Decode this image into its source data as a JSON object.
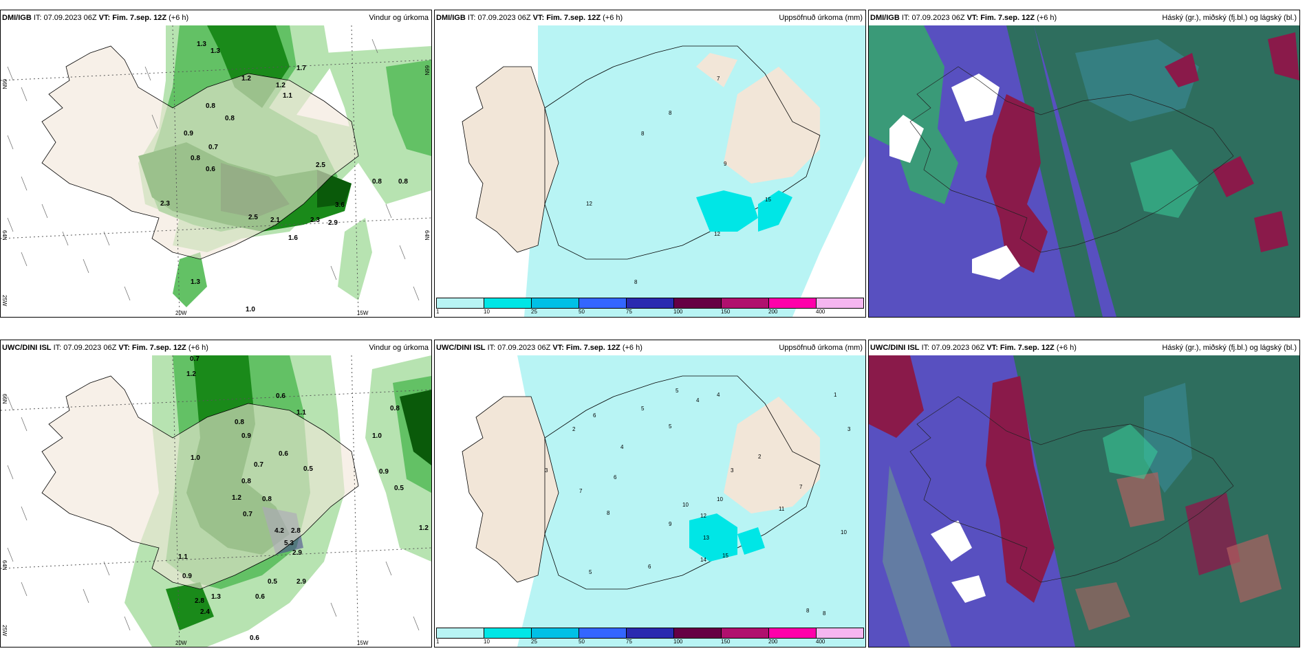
{
  "panels": [
    {
      "source": "DMI/IGB",
      "it": "IT: 07.09.2023 06Z",
      "vt": "VT: Fim. 7.sep. 12Z",
      "lead": "(+6 h)",
      "title": "Vindur og úrkoma"
    },
    {
      "source": "DMI/IGB",
      "it": "IT: 07.09.2023 06Z",
      "vt": "VT: Fim. 7.sep. 12Z",
      "lead": "(+6 h)",
      "title": "Uppsöfnuð úrkoma (mm)"
    },
    {
      "source": "DMI/IGB",
      "it": "IT: 07.09.2023 06Z",
      "vt": "VT: Fim. 7.sep. 12Z",
      "lead": "(+6 h)",
      "title": "Háský (gr.), miðský (fj.bl.) og lágský (bl.)"
    },
    {
      "source": "UWC/DINI ISL",
      "it": "IT: 07.09.2023 06Z",
      "vt": "VT: Fim. 7.sep. 12Z",
      "lead": "(+6 h)",
      "title": "Vindur og úrkoma"
    },
    {
      "source": "UWC/DINI ISL",
      "it": "IT: 07.09.2023 06Z",
      "vt": "VT: Fim. 7.sep. 12Z",
      "lead": "(+6 h)",
      "title": "Uppsöfnuð úrkoma (mm)"
    },
    {
      "source": "UWC/DINI ISL",
      "it": "IT: 07.09.2023 06Z",
      "vt": "VT: Fim. 7.sep. 12Z",
      "lead": "(+6 h)",
      "title": "Háský (gr.), miðský (fj.bl.) og lágský (bl.)"
    }
  ],
  "gridlabels": {
    "lat66": "66N",
    "lat64": "64N",
    "lon25": "25W",
    "lon20": "20W",
    "lon15": "15W",
    "lat66r": "66N",
    "lat64r": "64N"
  },
  "colorbar": {
    "labels": [
      "1",
      "10",
      "25",
      "50",
      "75",
      "100",
      "150",
      "200",
      "400"
    ],
    "colors": [
      "#b8f4f4",
      "#00e6e6",
      "#00c0e6",
      "#3366ff",
      "#2a2ab0",
      "#660044",
      "#b0106e",
      "#ff00aa",
      "#f5b6f0"
    ]
  },
  "precip_labels_top": [
    "1.3",
    "1.3",
    "1.7",
    "1.2",
    "1.2",
    "1.1",
    "0.8",
    "0.8",
    "0.9",
    "0.7",
    "0.8",
    "0.6",
    "2.5",
    "2.3",
    "2.5",
    "2.1",
    "2.3",
    "3.6",
    "2.9",
    "1.6",
    "0.8",
    "0.8",
    "1.3",
    "1.0"
  ],
  "precip_labels_bottom": [
    "0.7",
    "1.2",
    "0.6",
    "0.8",
    "0.9",
    "1.1",
    "1.0",
    "0.7",
    "0.6",
    "0.8",
    "0.5",
    "1.2",
    "0.8",
    "0.7",
    "4.2",
    "5.3",
    "2.8",
    "2.9",
    "0.5",
    "2.9",
    "0.6",
    "1.3",
    "2.8",
    "2.4",
    "0.6",
    "0.9",
    "1.1",
    "0.5",
    "1.0",
    "0.8",
    "0.9",
    "1.2"
  ],
  "accum_labels_top": [
    "7",
    "8",
    "8",
    "9",
    "12",
    "8",
    "12",
    "15"
  ],
  "accum_labels_bottom": [
    "5",
    "5",
    "4",
    "4",
    "6",
    "2",
    "3",
    "4",
    "5",
    "6",
    "7",
    "8",
    "9",
    "10",
    "12",
    "13",
    "14",
    "15",
    "10",
    "11",
    "7",
    "6",
    "5",
    "3",
    "2",
    "1",
    "3",
    "8",
    "8",
    "10"
  ]
}
